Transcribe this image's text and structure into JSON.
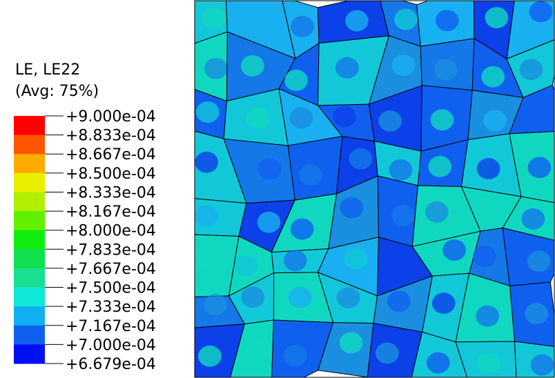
{
  "legend": {
    "title": "LE, LE22",
    "subtitle": "(Avg: 75%)",
    "labels": [
      "+9.000e-04",
      "+8.833e-04",
      "+8.667e-04",
      "+8.500e-04",
      "+8.333e-04",
      "+8.167e-04",
      "+8.000e-04",
      "+7.833e-04",
      "+7.667e-04",
      "+7.500e-04",
      "+7.333e-04",
      "+7.167e-04",
      "+7.000e-04",
      "+6.679e-04"
    ],
    "colors": [
      "#ff0000",
      "#ff5500",
      "#ffaa00",
      "#e8f000",
      "#b0f000",
      "#60f000",
      "#10ee10",
      "#10e050",
      "#18e090",
      "#10e8d8",
      "#10b0f0",
      "#1060f0",
      "#0010f0"
    ]
  }
}
